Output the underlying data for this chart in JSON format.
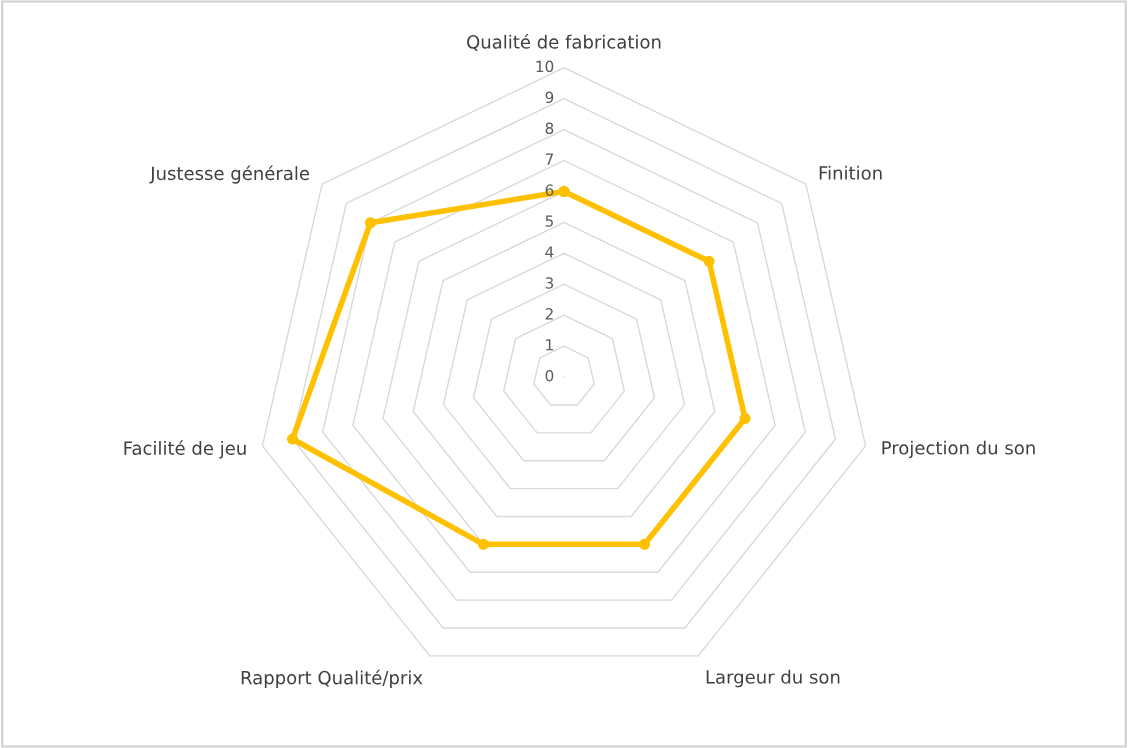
{
  "chart_data": {
    "type": "radar",
    "categories": [
      "Qualité de fabrication",
      "Finition",
      "Projection du son",
      "Largeur du son",
      "Rapport Qualité/prix",
      "Facilité de jeu",
      "Justesse générale"
    ],
    "series": [
      {
        "color": "#ffc000",
        "values": [
          6,
          6,
          6,
          6,
          6,
          9,
          8
        ]
      }
    ],
    "ylim": [
      0,
      10
    ],
    "yticks": [
      0,
      1,
      2,
      3,
      4,
      5,
      6,
      7,
      8,
      9,
      10
    ],
    "grid": true,
    "marker": "circle",
    "legend": false
  }
}
